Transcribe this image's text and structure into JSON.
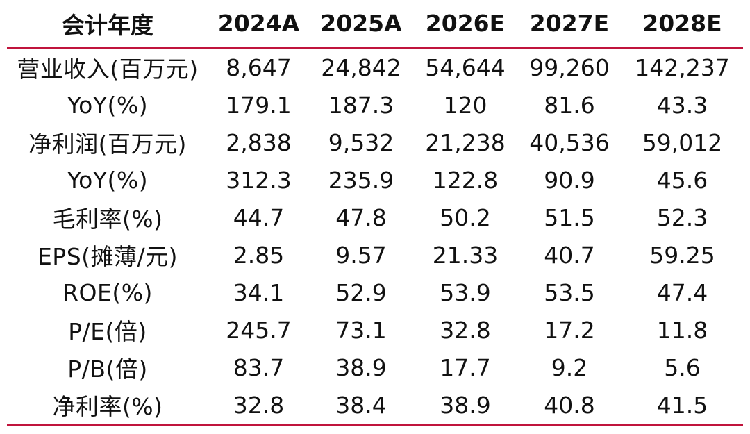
{
  "colors": {
    "rule": "#c0143c",
    "text": "#111111",
    "background": "#ffffff"
  },
  "table": {
    "headers": [
      "会计年度",
      "2024A",
      "2025A",
      "2026E",
      "2027E",
      "2028E"
    ],
    "rows": [
      {
        "label": "营业收入(百万元)",
        "values": [
          "8,647",
          "24,842",
          "54,644",
          "99,260",
          "142,237"
        ]
      },
      {
        "label": "YoY(%)",
        "values": [
          "179.1",
          "187.3",
          "120",
          "81.6",
          "43.3"
        ]
      },
      {
        "label": "净利润(百万元)",
        "values": [
          "2,838",
          "9,532",
          "21,238",
          "40,536",
          "59,012"
        ]
      },
      {
        "label": "YoY(%)",
        "values": [
          "312.3",
          "235.9",
          "122.8",
          "90.9",
          "45.6"
        ]
      },
      {
        "label": "毛利率(%)",
        "values": [
          "44.7",
          "47.8",
          "50.2",
          "51.5",
          "52.3"
        ]
      },
      {
        "label": "EPS(摊薄/元)",
        "values": [
          "2.85",
          "9.57",
          "21.33",
          "40.7",
          "59.25"
        ]
      },
      {
        "label": "ROE(%)",
        "values": [
          "34.1",
          "52.9",
          "53.9",
          "53.5",
          "47.4"
        ]
      },
      {
        "label": "P/E(倍)",
        "values": [
          "245.7",
          "73.1",
          "32.8",
          "17.2",
          "11.8"
        ]
      },
      {
        "label": "P/B(倍)",
        "values": [
          "83.7",
          "38.9",
          "17.7",
          "9.2",
          "5.6"
        ]
      },
      {
        "label": "净利率(%)",
        "values": [
          "32.8",
          "38.4",
          "38.9",
          "40.8",
          "41.5"
        ]
      }
    ]
  }
}
